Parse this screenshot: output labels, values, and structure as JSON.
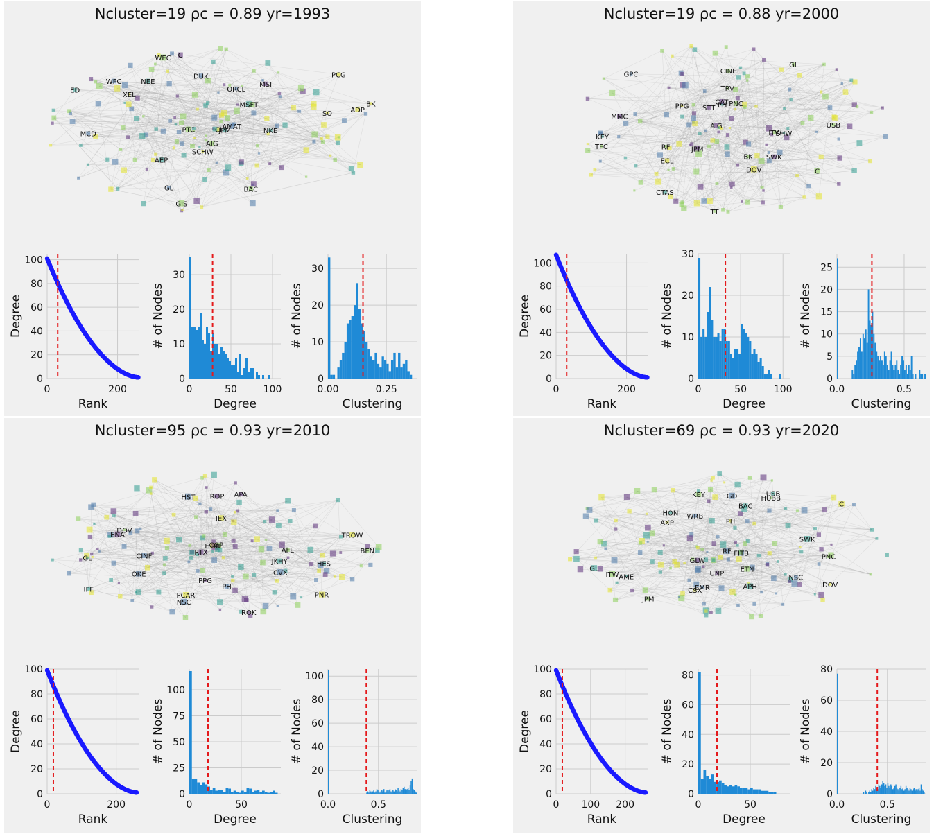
{
  "panels": [
    {
      "title": "Ncluster=19  ρc = 0.89 yr=1993",
      "network_labels": [
        "AEP",
        "GIS",
        "DUK",
        "SO",
        "ED",
        "AIG",
        "CI",
        "NEE",
        "MCD",
        "XEL",
        "PCG",
        "WEC",
        "GL",
        "WFC",
        "ADP",
        "NKE",
        "BAC",
        "JPM",
        "SCHW",
        "MSFT",
        "BK",
        "ORCL",
        "MSI",
        "PTC",
        "C",
        "AMAT"
      ],
      "rank": {
        "xlabel": "Rank",
        "ylabel": "Degree",
        "xlim": [
          0,
          260
        ],
        "ylim": [
          0,
          105
        ],
        "xticks": [
          0,
          200
        ],
        "yticks": [
          0,
          20,
          40,
          60,
          80,
          100
        ],
        "cut": 30,
        "n": 260,
        "max": 100
      },
      "degree_hist": {
        "xlabel": "Degree",
        "ylabel": "# of Nodes",
        "xlim": [
          0,
          110
        ],
        "ylim": [
          0,
          36
        ],
        "xticks": [
          0,
          50,
          100
        ],
        "yticks": [
          0,
          10,
          20,
          30
        ],
        "cut": 28,
        "bin": 2.5,
        "values": [
          35,
          15,
          15,
          14,
          15,
          19,
          11,
          10,
          15,
          13,
          8,
          13,
          10,
          10,
          7,
          9,
          8,
          7,
          6,
          5,
          4,
          4,
          6,
          2,
          7,
          1,
          3,
          6,
          2,
          3,
          3,
          0,
          2,
          1,
          0,
          1,
          0,
          0,
          1
        ]
      },
      "clustering_hist": {
        "xlabel": "Clustering",
        "ylabel": "# of Nodes",
        "xlim": [
          0,
          0.38
        ],
        "ylim": [
          0,
          34
        ],
        "xticks": [
          0.0,
          0.25
        ],
        "xtick_labels": [
          "0.00",
          "0.25"
        ],
        "yticks": [
          0,
          10,
          20,
          30
        ],
        "cut": 0.15,
        "bin": 0.01,
        "values": [
          33,
          1,
          1,
          0,
          3,
          5,
          7,
          10,
          15,
          16,
          17,
          20,
          26,
          19,
          15,
          13,
          10,
          8,
          6,
          5,
          7,
          4,
          3,
          6,
          5,
          4,
          2,
          5,
          7,
          3,
          7,
          3,
          4,
          5,
          2,
          1,
          0,
          0
        ]
      }
    },
    {
      "title": "Ncluster=19  ρc = 0.88 yr=2000",
      "network_labels": [
        "C",
        "JPM",
        "CINF",
        "MMC",
        "CTAS",
        "RF",
        "TRV",
        "SHW",
        "SWK",
        "DOV",
        "AIG",
        "GL",
        "PNC",
        "TFC",
        "PH",
        "GPC",
        "KEY",
        "PPG",
        "BK",
        "USB",
        "STT",
        "TT",
        "ITW",
        "CAT",
        "ECL"
      ],
      "rank": {
        "xlabel": "Rank",
        "ylabel": "Degree",
        "xlim": [
          0,
          260
        ],
        "ylim": [
          0,
          108
        ],
        "xticks": [
          0,
          200
        ],
        "yticks": [
          0,
          20,
          40,
          60,
          80,
          100
        ],
        "cut": 30,
        "n": 260,
        "max": 106
      },
      "degree_hist": {
        "xlabel": "Degree",
        "ylabel": "# of Nodes",
        "xlim": [
          0,
          108
        ],
        "ylim": [
          0,
          30
        ],
        "xticks": [
          0,
          50,
          100
        ],
        "yticks": [
          0,
          10,
          20,
          30
        ],
        "cut": 32,
        "bin": 2.5,
        "values": [
          29,
          10,
          12,
          10,
          16,
          22,
          14,
          10,
          10,
          11,
          9,
          12,
          12,
          9,
          9,
          6,
          5,
          7,
          7,
          6,
          13,
          12,
          11,
          10,
          9,
          6,
          7,
          6,
          4,
          5,
          3,
          1,
          1,
          2,
          1,
          0,
          0,
          0,
          1,
          0,
          0,
          0,
          0
        ]
      },
      "clustering_hist": {
        "xlabel": "Clustering",
        "ylabel": "# of Nodes",
        "xlim": [
          0,
          0.66
        ],
        "ylim": [
          0,
          28
        ],
        "xticks": [
          0.0,
          0.5
        ],
        "xtick_labels": [
          "0.0",
          "0.5"
        ],
        "yticks": [
          0,
          5,
          10,
          15,
          20,
          25
        ],
        "cut": 0.26,
        "bin": 0.01,
        "values": [
          27,
          0,
          0,
          0,
          0,
          0,
          0,
          0,
          0,
          0,
          0,
          2,
          1,
          3,
          4,
          6,
          7,
          9,
          6,
          10,
          9,
          11,
          8,
          20,
          13,
          12,
          15,
          10,
          8,
          6,
          5,
          4,
          5,
          4,
          3,
          6,
          5,
          3,
          2,
          4,
          6,
          3,
          2,
          3,
          4,
          2,
          1,
          3,
          5,
          4,
          2,
          3,
          1,
          3,
          2,
          5,
          1,
          0,
          1,
          0,
          0,
          2,
          1,
          1,
          0,
          1
        ]
      }
    },
    {
      "title": "Ncluster=95  ρc = 0.93 yr=2010",
      "network_labels": [
        "COP",
        "OKE",
        "APA",
        "CVX",
        "HES",
        "DOV",
        "GL",
        "IFF",
        "HON",
        "IEX",
        "RTX",
        "TROW",
        "NSC",
        "PCAR",
        "ENA",
        "PPG",
        "ROP",
        "PH",
        "JKHY",
        "PNR",
        "CINF",
        "HST",
        "ROK",
        "AFL",
        "BEN"
      ],
      "rank": {
        "xlabel": "Rank",
        "ylabel": "Degree",
        "xlim": [
          0,
          265
        ],
        "ylim": [
          0,
          100
        ],
        "xticks": [
          0,
          200
        ],
        "yticks": [
          0,
          20,
          40,
          60,
          80,
          100
        ],
        "cut": 18,
        "n": 260,
        "max": 98
      },
      "degree_hist": {
        "xlabel": "Degree",
        "ylabel": "# of Nodes",
        "xlim": [
          0,
          88
        ],
        "ylim": [
          0,
          120
        ],
        "xticks": [
          0,
          50
        ],
        "yticks": [
          0,
          25,
          50,
          75,
          100
        ],
        "cut": 18,
        "bin": 2.5,
        "values": [
          118,
          14,
          14,
          11,
          8,
          11,
          9,
          7,
          4,
          6,
          3,
          4,
          4,
          2,
          6,
          5,
          2,
          3,
          2,
          1,
          3,
          2,
          6,
          5,
          2,
          3,
          4,
          2,
          3,
          2,
          1,
          2,
          3,
          1,
          0
        ]
      },
      "clustering_hist": {
        "xlabel": "Clustering",
        "ylabel": "# of Nodes",
        "xlim": [
          0,
          0.88
        ],
        "ylim": [
          0,
          106
        ],
        "xticks": [
          0.0,
          0.5
        ],
        "xtick_labels": [
          "0.0",
          "0.5"
        ],
        "yticks": [
          0,
          20,
          40,
          60,
          80,
          100
        ],
        "cut": 0.38,
        "bin": 0.01,
        "values": [
          105,
          0,
          0,
          0,
          0,
          0,
          0,
          0,
          0,
          0,
          0,
          0,
          0,
          0,
          0,
          0,
          0,
          0,
          0,
          0,
          0,
          0,
          0,
          0,
          0,
          0,
          0,
          0,
          0,
          0,
          0,
          0,
          0,
          0,
          0,
          0,
          0,
          0,
          1,
          2,
          1,
          3,
          2,
          1,
          2,
          3,
          1,
          2,
          4,
          3,
          2,
          1,
          2,
          3,
          2,
          4,
          1,
          2,
          3,
          2,
          3,
          4,
          2,
          1,
          3,
          2,
          4,
          3,
          2,
          5,
          3,
          2,
          4,
          3,
          5,
          6,
          4,
          3,
          4,
          5,
          3,
          7,
          11,
          13,
          4,
          3,
          2,
          1
        ]
      }
    },
    {
      "title": "Ncluster=69  ρc = 0.93 yr=2020",
      "network_labels": [
        "AXP",
        "GL",
        "USB",
        "WRB",
        "BAC",
        "KEY",
        "RF",
        "GD",
        "ITW",
        "GLW",
        "FITB",
        "DOV",
        "PH",
        "NSC",
        "JPM",
        "C",
        "PNC",
        "HUBB",
        "SWK",
        "UNP",
        "APH",
        "ETN",
        "AME",
        "EMR",
        "HON",
        "CSX"
      ],
      "rank": {
        "xlabel": "Rank",
        "ylabel": "Degree",
        "xlim": [
          0,
          265
        ],
        "ylim": [
          0,
          100
        ],
        "xticks": [
          0,
          100,
          200
        ],
        "yticks": [
          0,
          20,
          40,
          60,
          80,
          100
        ],
        "cut": 18,
        "n": 260,
        "max": 98
      },
      "degree_hist": {
        "xlabel": "Degree",
        "ylabel": "# of Nodes",
        "xlim": [
          0,
          88
        ],
        "ylim": [
          0,
          84
        ],
        "xticks": [
          0,
          50
        ],
        "yticks": [
          0,
          20,
          40,
          60,
          80
        ],
        "cut": 18,
        "bin": 2.5,
        "values": [
          82,
          10,
          16,
          12,
          10,
          13,
          8,
          8,
          9,
          7,
          6,
          5,
          6,
          5,
          6,
          5,
          4,
          4,
          4,
          3,
          4,
          3,
          3,
          3,
          2,
          2,
          2,
          1,
          1,
          1,
          0,
          0,
          0,
          0,
          0
        ]
      },
      "clustering_hist": {
        "xlabel": "Clustering",
        "ylabel": "# of Nodes",
        "xlim": [
          0,
          0.88
        ],
        "ylim": [
          0,
          80
        ],
        "xticks": [
          0.0,
          0.5
        ],
        "xtick_labels": [
          "0.0",
          "0.5"
        ],
        "yticks": [
          0,
          20,
          40,
          60,
          80
        ],
        "cut": 0.4,
        "bin": 0.01,
        "values": [
          77,
          0,
          0,
          0,
          0,
          0,
          0,
          0,
          0,
          0,
          0,
          0,
          0,
          0,
          0,
          0,
          0,
          0,
          0,
          0,
          0,
          0,
          0,
          0,
          0,
          0,
          1,
          0,
          2,
          1,
          0,
          1,
          2,
          1,
          3,
          2,
          4,
          3,
          5,
          4,
          3,
          6,
          5,
          4,
          6,
          8,
          7,
          5,
          6,
          4,
          7,
          5,
          4,
          6,
          5,
          3,
          4,
          5,
          6,
          4,
          3,
          2,
          4,
          5,
          3,
          4,
          2,
          3,
          5,
          4,
          3,
          2,
          4,
          3,
          2,
          3,
          4,
          2,
          3,
          2,
          3,
          4,
          2,
          6,
          3,
          2,
          1
        ]
      }
    }
  ],
  "chart_data": [
    {
      "type": "scatter",
      "title": "Ncluster=19  ρc = 0.89 yr=1993",
      "xlabel": "Rank",
      "ylabel": "Degree",
      "note_series": "degree by rank"
    },
    {
      "type": "bar",
      "xlabel": "Degree",
      "ylabel": "# of Nodes"
    },
    {
      "type": "bar",
      "xlabel": "Clustering",
      "ylabel": "# of Nodes"
    }
  ],
  "colors": {
    "bg": "#f0f0f0",
    "grid": "#cfcfcf",
    "hist": "#1f8ad6",
    "rank": "#1a1aff",
    "cut": "#e41a1c",
    "cluster_palette": [
      "#5b2f7a",
      "#4a78a8",
      "#2f9c8f",
      "#8ccf5a",
      "#e3e32a"
    ]
  }
}
